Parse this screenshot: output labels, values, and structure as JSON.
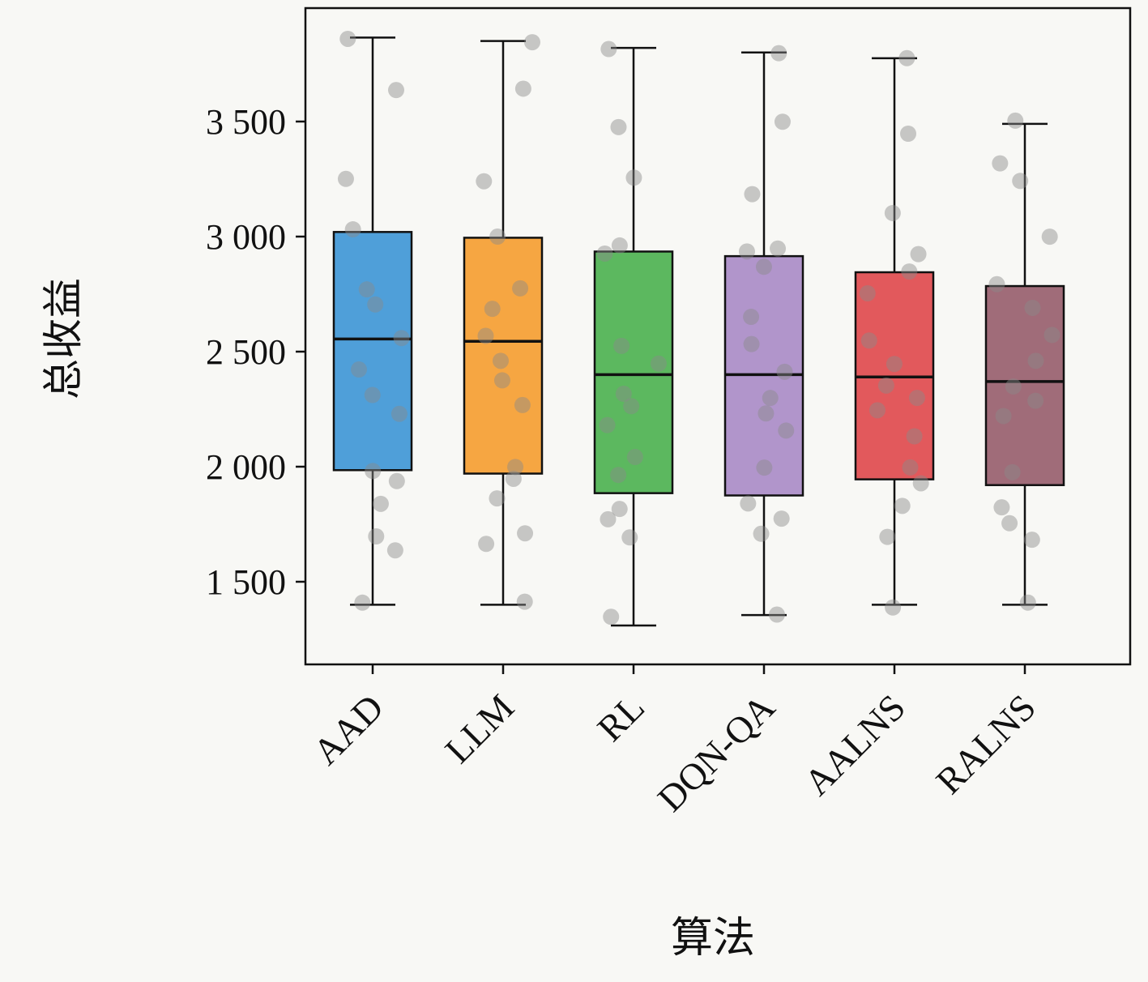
{
  "chart_data": {
    "type": "boxplot",
    "title": "",
    "xlabel": "算法",
    "ylabel": "总收益",
    "ylim": [
      1150,
      3990
    ],
    "grid": false,
    "legend": "none",
    "yticks": [
      1500,
      2000,
      2500,
      3000,
      3500
    ],
    "ytick_labels": [
      "1 500",
      "2 000",
      "2 500",
      "3 000",
      "3 500"
    ],
    "categories": [
      "AAD",
      "LLM",
      "RL",
      "DQN-QA",
      "AALNS",
      "RALNS"
    ],
    "frame_color": "#111111",
    "point_color": "#8a8a8a",
    "point_opacity": 0.45,
    "series": [
      {
        "label": "AAD",
        "color": "#4f9fd9",
        "whisker_low": 1400,
        "q1": 1985,
        "median": 2555,
        "q3": 3020,
        "whisker_high": 3865,
        "points": [
          3865,
          3650,
          3240,
          3040,
          2760,
          2700,
          2560,
          2420,
          2300,
          2240,
          1995,
          1930,
          1830,
          1700,
          1650,
          1400
        ]
      },
      {
        "label": "LLM",
        "color": "#f6a642",
        "whisker_low": 1400,
        "q1": 1970,
        "median": 2545,
        "q3": 2995,
        "whisker_high": 3850,
        "points": [
          3850,
          3655,
          3250,
          2990,
          2770,
          2700,
          2560,
          2450,
          2380,
          2280,
          2000,
          1950,
          1870,
          1720,
          1660,
          1400
        ]
      },
      {
        "label": "RL",
        "color": "#5cb85f",
        "whisker_low": 1310,
        "q1": 1885,
        "median": 2400,
        "q3": 2935,
        "whisker_high": 3820,
        "points": [
          3820,
          3470,
          3245,
          2960,
          2940,
          2520,
          2450,
          2320,
          2250,
          2180,
          2050,
          1960,
          1810,
          1760,
          1700,
          1360
        ]
      },
      {
        "label": "DQN-QA",
        "color": "#b195cb",
        "whisker_low": 1355,
        "q1": 1875,
        "median": 2400,
        "q3": 2915,
        "whisker_high": 3800,
        "points": [
          3800,
          3490,
          3190,
          2960,
          2930,
          2870,
          2660,
          2540,
          2400,
          2310,
          2230,
          2150,
          1990,
          1830,
          1780,
          1700,
          1360
        ]
      },
      {
        "label": "AALNS",
        "color": "#e2595c",
        "whisker_low": 1400,
        "q1": 1945,
        "median": 2390,
        "q3": 2845,
        "whisker_high": 3775,
        "points": [
          3775,
          3440,
          3090,
          2920,
          2860,
          2760,
          2550,
          2450,
          2350,
          2300,
          2240,
          2130,
          2000,
          1930,
          1830,
          1700,
          1400
        ]
      },
      {
        "label": "RALNS",
        "color": "#a06c79",
        "whisker_low": 1400,
        "q1": 1920,
        "median": 2370,
        "q3": 2785,
        "whisker_high": 3490,
        "points": [
          3490,
          3330,
          3240,
          3000,
          2780,
          2700,
          2560,
          2450,
          2350,
          2280,
          2230,
          1980,
          1830,
          1760,
          1690,
          1400
        ]
      }
    ]
  }
}
